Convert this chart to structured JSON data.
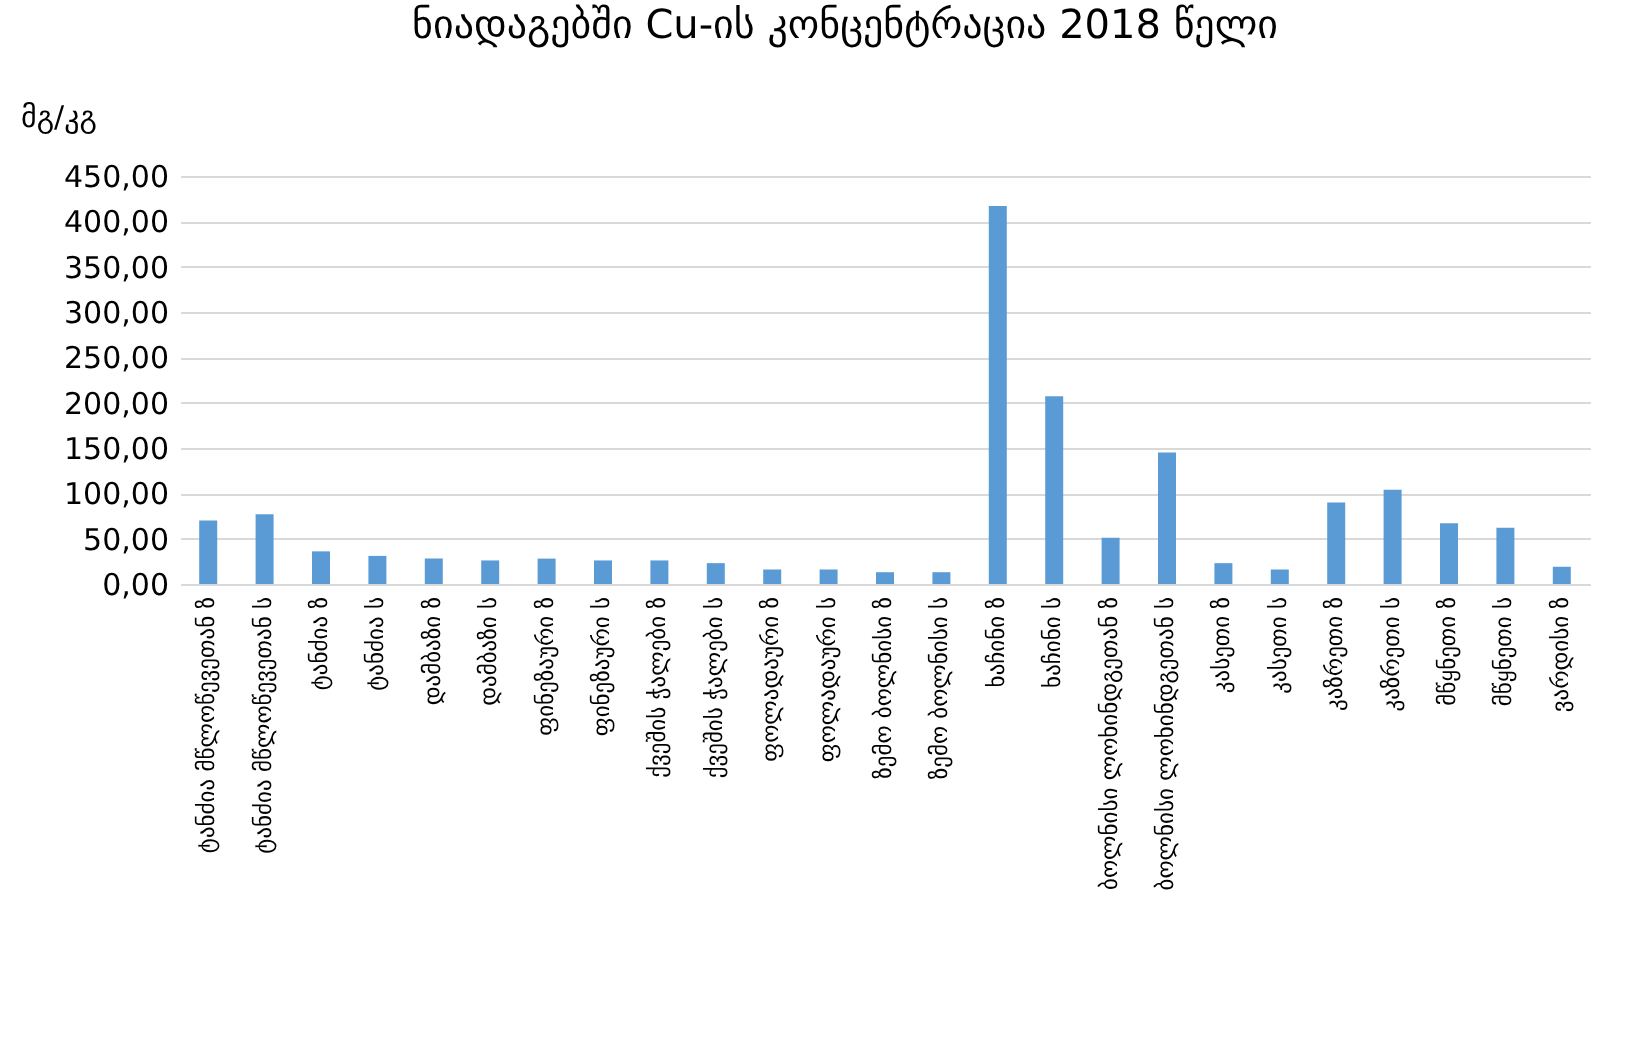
{
  "chart_data": {
    "type": "bar",
    "title": "ნიადაგებში Cu-ის კონცენტრაცია 2018 წელი",
    "ylabel": "მგ/კგ",
    "categories": [
      "ტანძია მწლოწევეთან ზ",
      "ტანძია მწლოწევეთან ს",
      "ტანძია ზ",
      "ტანძია ს",
      "დამბაზი ზ",
      "დამბაზი ს",
      "ფინეზაური ზ",
      "ფინეზაური ს",
      "ქვეშის ჭალები ზ",
      "ქვეშის ჭალები ს",
      "ფოლადაური ზ",
      "ფოლადაური ს",
      "ზემო ბოლნისი ზ",
      "ზემო ბოლნისი ს",
      "ხაჩინი ზ",
      "ხაჩინი ს",
      "ბოლნისი ლოხინდგეთან ზ",
      "ბოლნისი ლოხინდგეთან ს",
      "კასეთი ზ",
      "კასეთი ს",
      "კაზრეთი ზ",
      "კაზრეთი ს",
      "მწყნეთი ზ",
      "მწყნეთი ს",
      "ვარდისი ზ"
    ],
    "values": [
      70,
      77,
      36,
      31,
      28,
      26,
      28,
      26,
      26,
      23,
      16,
      16,
      13,
      13,
      417,
      207,
      51,
      145,
      23,
      16,
      90,
      104,
      67,
      62,
      19
    ],
    "color": "#5b9bd5",
    "ylim": [
      0,
      450
    ],
    "yticks": [
      {
        "value": 0,
        "label": "0,00"
      },
      {
        "value": 50,
        "label": "50,00"
      },
      {
        "value": 100,
        "label": "100,00"
      },
      {
        "value": 150,
        "label": "150,00"
      },
      {
        "value": 200,
        "label": "200,00"
      },
      {
        "value": 250,
        "label": "250,00"
      },
      {
        "value": 300,
        "label": "300,00"
      },
      {
        "value": 350,
        "label": "350,00"
      },
      {
        "value": 400,
        "label": "400,00"
      },
      {
        "value": 450,
        "label": "450,00"
      }
    ],
    "grid": "y"
  }
}
